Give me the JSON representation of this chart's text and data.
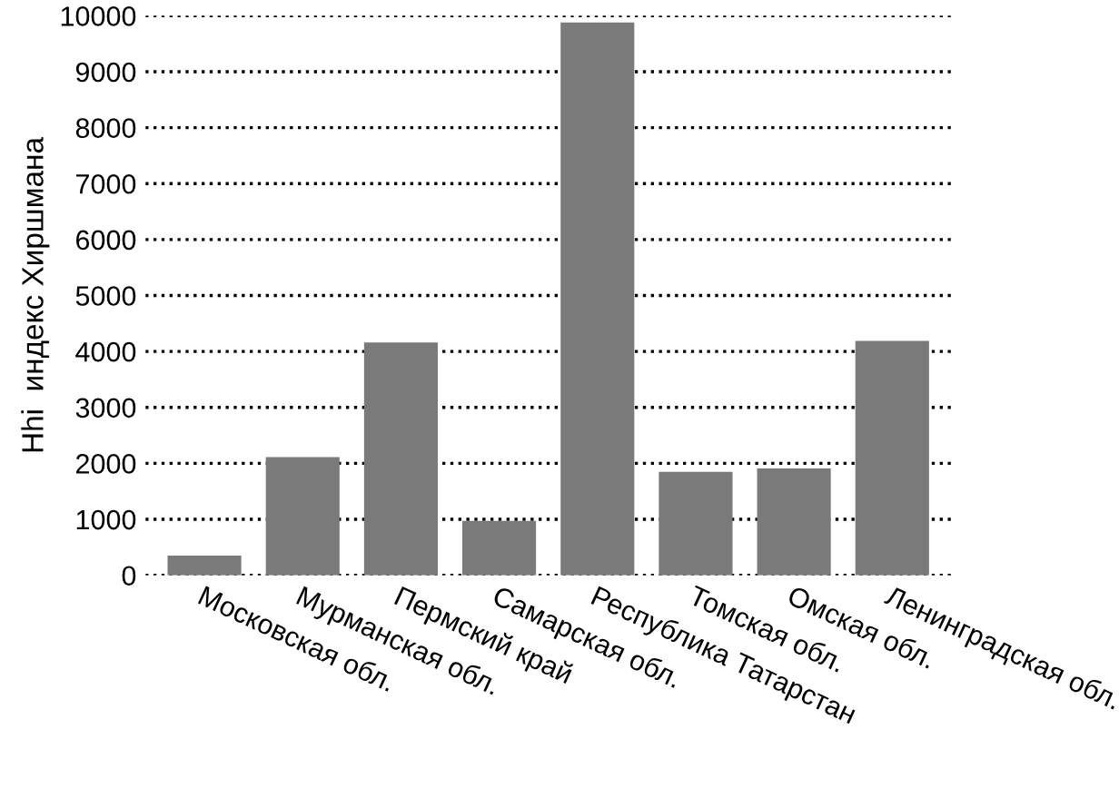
{
  "chart_data": {
    "type": "bar",
    "ylabel": "Hhi  индекс Хиршмана",
    "categories": [
      "Московская обл.",
      "Мурманская обл.",
      "Пермский край",
      "Самарская обл.",
      "Республика Татарстан",
      "Томская обл.",
      "Омская обл.",
      "Ленинградская обл."
    ],
    "values": [
      350,
      2110,
      4160,
      970,
      9880,
      1850,
      1910,
      4190
    ],
    "color": "#7a7a7a",
    "ylim": [
      0,
      10000
    ],
    "yticks": [
      0,
      1000,
      2000,
      3000,
      4000,
      5000,
      6000,
      7000,
      8000,
      9000,
      10000
    ],
    "grid": "y",
    "line_style": "dotted"
  }
}
